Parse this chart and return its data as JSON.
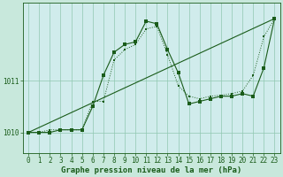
{
  "title": "Graphe pression niveau de la mer (hPa)",
  "bg_color": "#c8e8dc",
  "plot_bg_color": "#d0ecec",
  "grid_color": "#90c8b0",
  "line_color": "#1a5c1a",
  "xlim": [
    -0.5,
    23.5
  ],
  "ylim": [
    1009.6,
    1012.5
  ],
  "yticks": [
    1010,
    1011
  ],
  "xticks": [
    0,
    1,
    2,
    3,
    4,
    5,
    6,
    7,
    8,
    9,
    10,
    11,
    12,
    13,
    14,
    15,
    16,
    17,
    18,
    19,
    20,
    21,
    22,
    23
  ],
  "series1_x": [
    0,
    1,
    2,
    3,
    4,
    5,
    6,
    7,
    8,
    9,
    10,
    11,
    12,
    13,
    14,
    15,
    16,
    17,
    18,
    19,
    20,
    21,
    22,
    23
  ],
  "series1_y": [
    1010.0,
    1010.0,
    1010.05,
    1010.05,
    1010.05,
    1010.05,
    1010.6,
    1010.6,
    1011.4,
    1011.6,
    1011.7,
    1012.0,
    1012.05,
    1011.5,
    1010.9,
    1010.7,
    1010.65,
    1010.7,
    1010.72,
    1010.75,
    1010.8,
    1011.1,
    1011.85,
    1012.2
  ],
  "series2_x": [
    0,
    1,
    2,
    3,
    4,
    5,
    6,
    7,
    8,
    9,
    10,
    11,
    12,
    13,
    14,
    15,
    16,
    17,
    18,
    19,
    20,
    21,
    22,
    23
  ],
  "series2_y": [
    1010.0,
    1010.0,
    1010.0,
    1010.05,
    1010.05,
    1010.05,
    1010.5,
    1011.1,
    1011.55,
    1011.7,
    1011.75,
    1012.15,
    1012.1,
    1011.6,
    1011.15,
    1010.55,
    1010.6,
    1010.65,
    1010.7,
    1010.7,
    1010.75,
    1010.7,
    1011.25,
    1012.2
  ],
  "trend_x": [
    0,
    23
  ],
  "trend_y": [
    1010.0,
    1012.2
  ],
  "tick_fontsize": 5.5,
  "xlabel_fontsize": 6.5
}
